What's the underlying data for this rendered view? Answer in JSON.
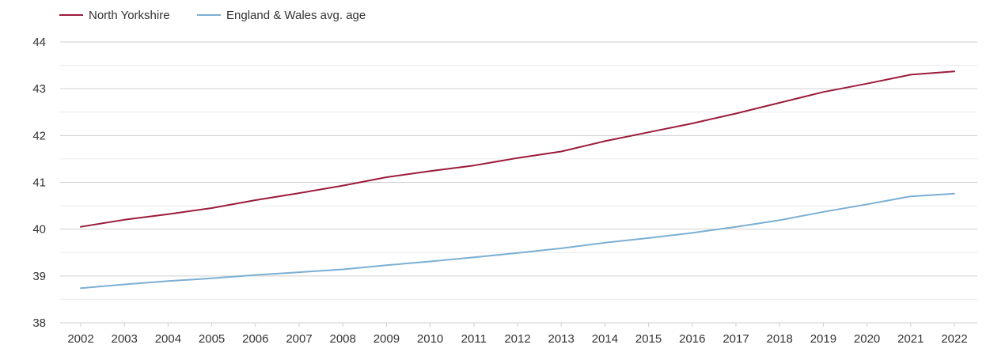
{
  "chart_data": {
    "type": "line",
    "x": [
      "2002",
      "2003",
      "2004",
      "2005",
      "2006",
      "2007",
      "2008",
      "2009",
      "2010",
      "2011",
      "2012",
      "2013",
      "2014",
      "2015",
      "2016",
      "2017",
      "2018",
      "2019",
      "2020",
      "2021",
      "2022"
    ],
    "series": [
      {
        "name": "North Yorkshire",
        "color": "#9b1b3a",
        "values": [
          40.05,
          40.2,
          40.32,
          40.45,
          40.62,
          40.77,
          40.93,
          41.11,
          41.24,
          41.36,
          41.52,
          41.66,
          41.88,
          42.07,
          42.26,
          42.47,
          42.7,
          42.93,
          43.11,
          43.3,
          43.37
        ]
      },
      {
        "name": "England & Wales avg. age",
        "color": "#7bafd4",
        "values": [
          38.74,
          38.82,
          38.89,
          38.95,
          39.02,
          39.08,
          39.14,
          39.23,
          39.31,
          39.4,
          39.49,
          39.59,
          39.71,
          39.81,
          39.92,
          40.05,
          40.19,
          40.37,
          40.53,
          40.7,
          40.76
        ]
      }
    ],
    "y_ticks": [
      "38",
      "39",
      "40",
      "41",
      "42",
      "43",
      "44"
    ],
    "ylim": [
      38,
      44
    ],
    "grid": true,
    "legend": "top-left",
    "title": "",
    "xlabel": "",
    "ylabel": ""
  }
}
